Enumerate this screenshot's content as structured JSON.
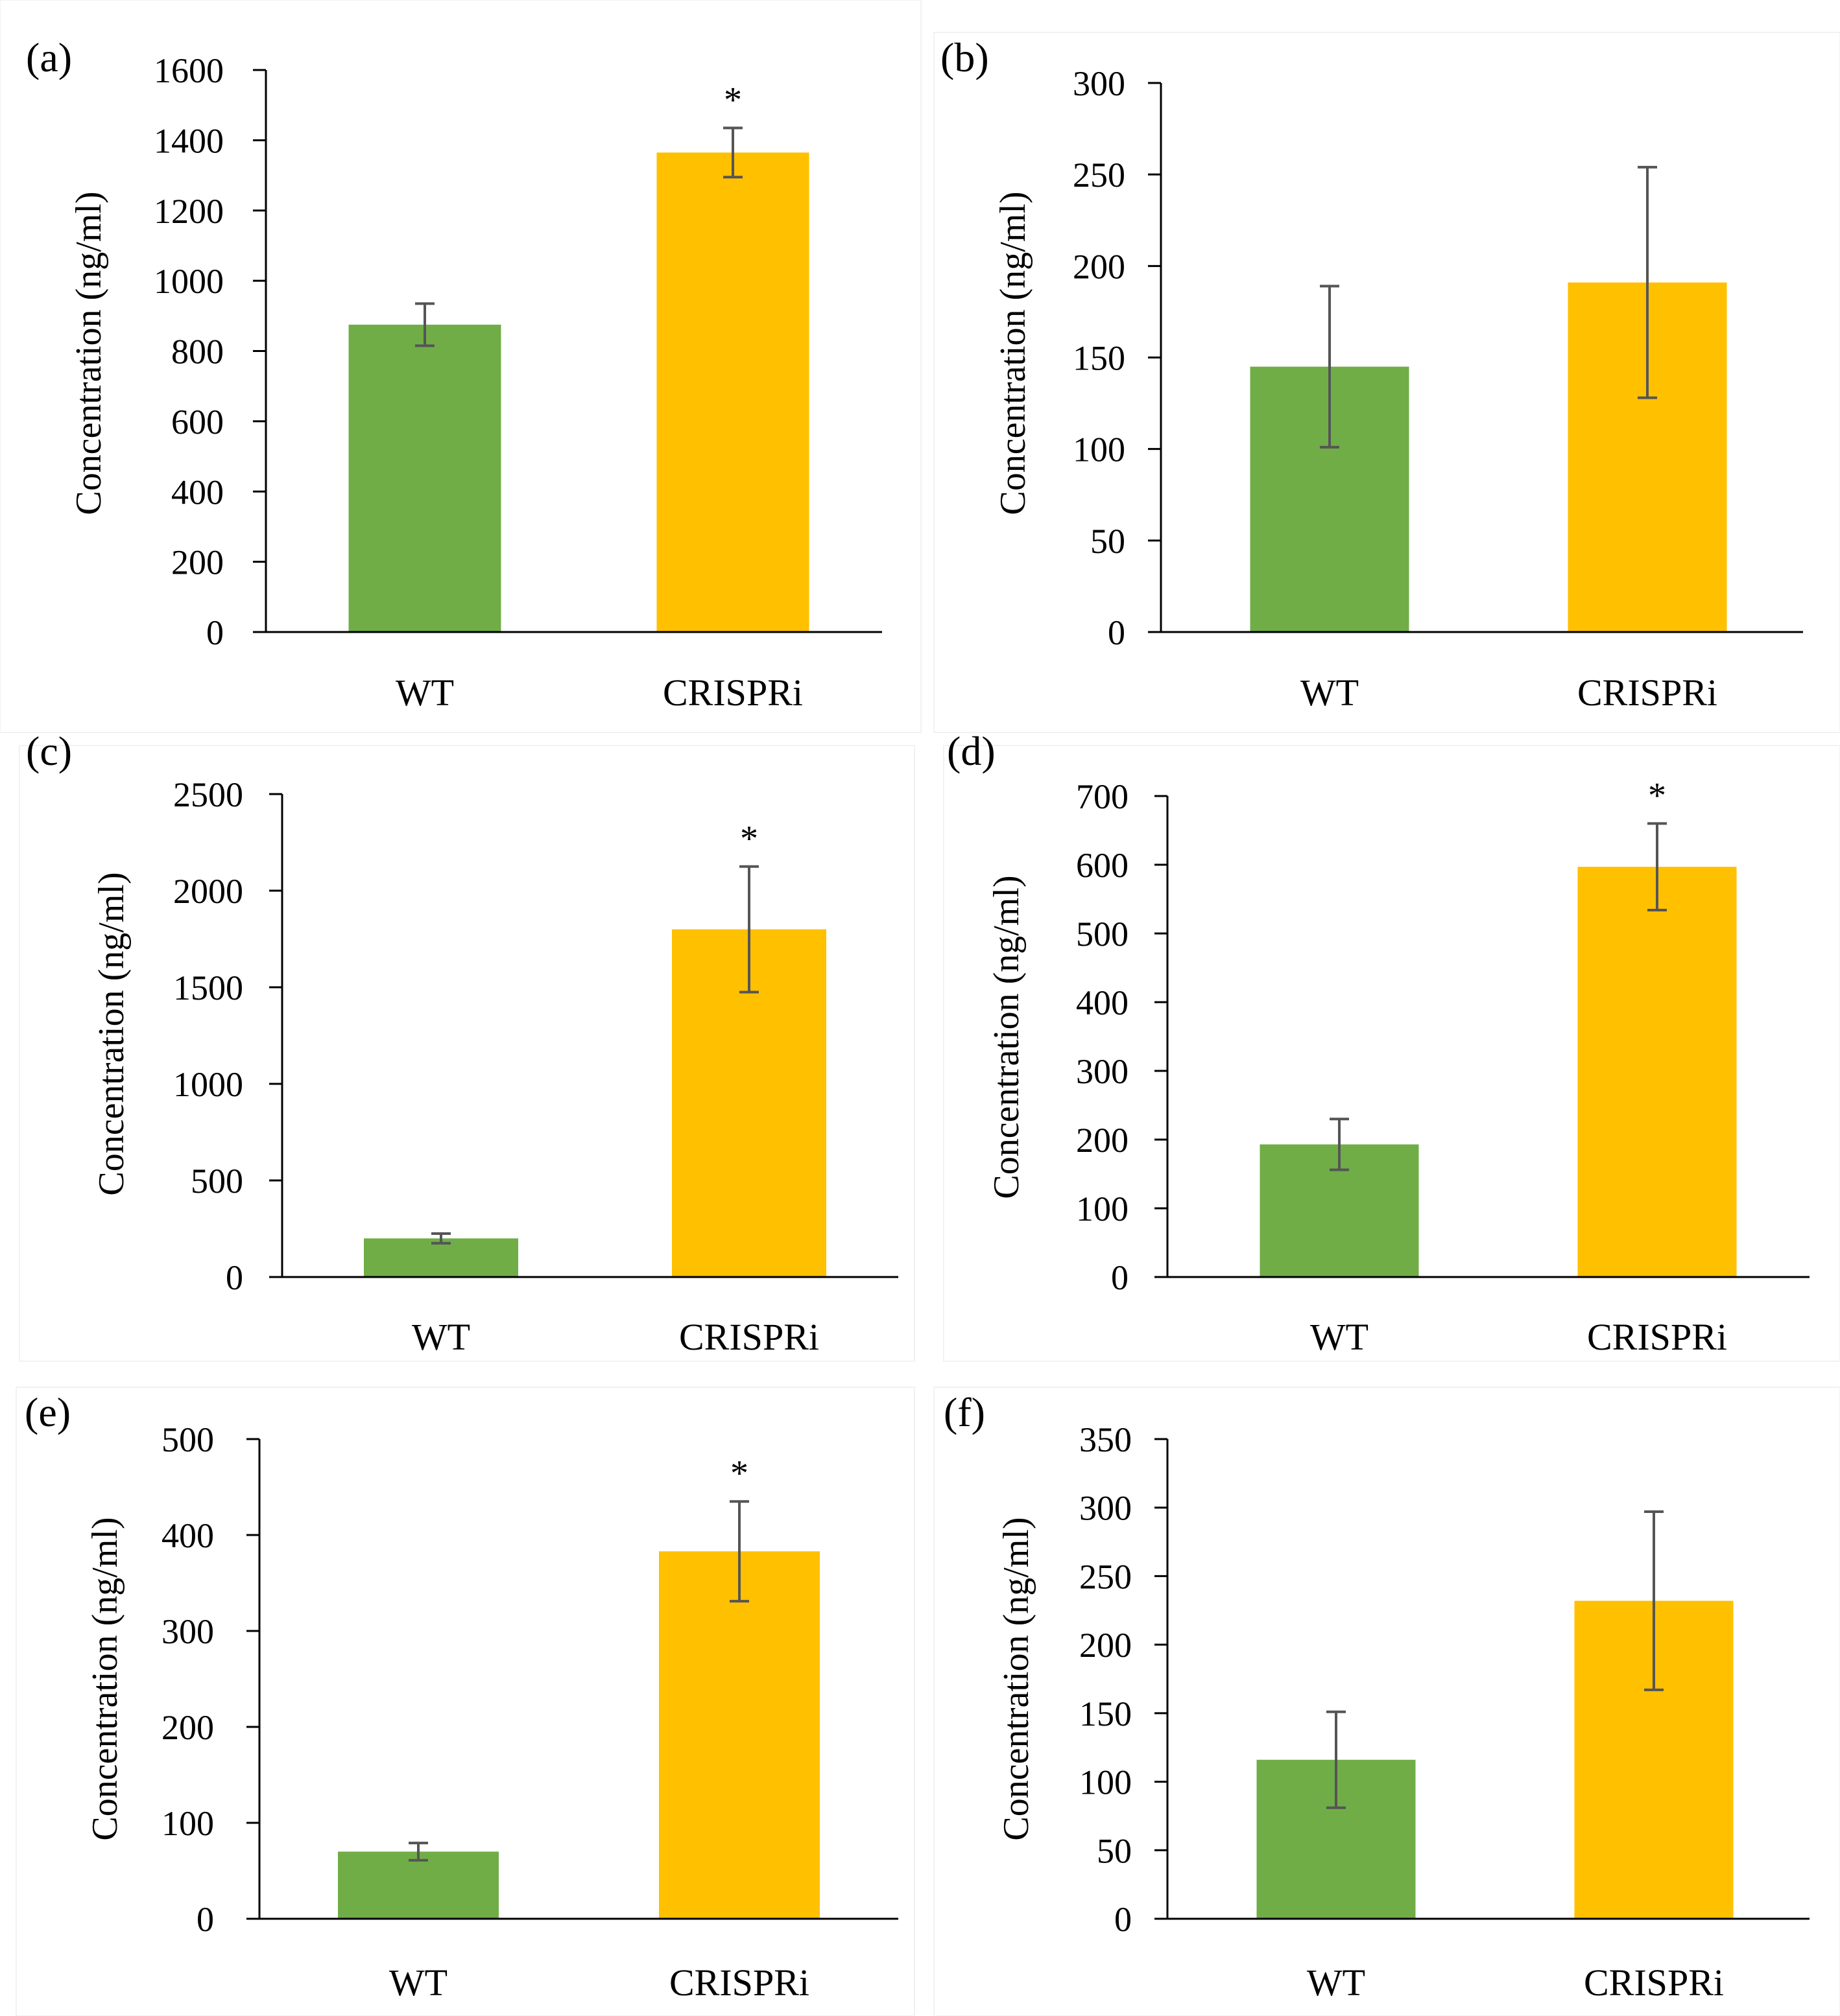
{
  "figure": {
    "background": "#ffffff",
    "colors": {
      "WT": "#70AD47",
      "CRISPRi": "#FFC000",
      "error_bar": "#555555"
    }
  },
  "chart_data": [
    {
      "type": "bar",
      "panel_label": "(a)",
      "categories": [
        "WT",
        "CRISPRi"
      ],
      "values": [
        875,
        1365
      ],
      "errors": [
        60,
        70
      ],
      "significance": [
        "",
        "*"
      ],
      "ylabel": "Concentration (ng/ml)",
      "xlabel": "",
      "ylim": [
        0,
        1600
      ],
      "yticks": [
        0,
        200,
        400,
        600,
        800,
        1000,
        1200,
        1400,
        1600
      ],
      "grid": false
    },
    {
      "type": "bar",
      "panel_label": "(b)",
      "categories": [
        "WT",
        "CRISPRi"
      ],
      "values": [
        145,
        191
      ],
      "errors": [
        44,
        63
      ],
      "significance": [
        "",
        ""
      ],
      "ylabel": "Concentration (ng/ml)",
      "xlabel": "",
      "ylim": [
        0,
        300
      ],
      "yticks": [
        0,
        50,
        100,
        150,
        200,
        250,
        300
      ],
      "grid": false
    },
    {
      "type": "bar",
      "panel_label": "(c)",
      "categories": [
        "WT",
        "CRISPRi"
      ],
      "values": [
        200,
        1800
      ],
      "errors": [
        25,
        325
      ],
      "significance": [
        "",
        "*"
      ],
      "ylabel": "Concentration (ng/ml)",
      "xlabel": "",
      "ylim": [
        0,
        2500
      ],
      "yticks": [
        0,
        500,
        1000,
        1500,
        2000,
        2500
      ],
      "grid": false
    },
    {
      "type": "bar",
      "panel_label": "(d)",
      "categories": [
        "WT",
        "CRISPRi"
      ],
      "values": [
        193,
        597
      ],
      "errors": [
        37,
        63
      ],
      "significance": [
        "",
        "*"
      ],
      "ylabel": "Concentration (ng/ml)",
      "xlabel": "",
      "ylim": [
        0,
        700
      ],
      "yticks": [
        0,
        100,
        200,
        300,
        400,
        500,
        600,
        700
      ],
      "grid": false
    },
    {
      "type": "bar",
      "panel_label": "(e)",
      "categories": [
        "WT",
        "CRISPRi"
      ],
      "values": [
        70,
        383
      ],
      "errors": [
        9,
        52
      ],
      "significance": [
        "",
        "*"
      ],
      "ylabel": "Concentration (ng/ml)",
      "xlabel": "",
      "ylim": [
        0,
        500
      ],
      "yticks": [
        0,
        100,
        200,
        300,
        400,
        500
      ],
      "grid": false
    },
    {
      "type": "bar",
      "panel_label": "(f)",
      "categories": [
        "WT",
        "CRISPRi"
      ],
      "values": [
        116,
        232
      ],
      "errors": [
        35,
        65
      ],
      "significance": [
        "",
        ""
      ],
      "ylabel": "Concentration (ng/ml)",
      "xlabel": "",
      "ylim": [
        0,
        350
      ],
      "yticks": [
        0,
        50,
        100,
        150,
        200,
        250,
        300,
        350
      ],
      "grid": false
    }
  ]
}
